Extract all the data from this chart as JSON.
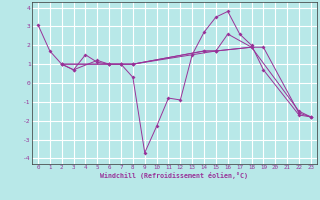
{
  "xlabel": "Windchill (Refroidissement éolien,°C)",
  "bg_color": "#b8e8e8",
  "plot_bg_color": "#b8e8e8",
  "line_color": "#993399",
  "grid_color": "#ffffff",
  "xlim": [
    -0.5,
    23.5
  ],
  "ylim": [
    -4.3,
    4.3
  ],
  "yticks": [
    -4,
    -3,
    -2,
    -1,
    0,
    1,
    2,
    3,
    4
  ],
  "xticks": [
    0,
    1,
    2,
    3,
    4,
    5,
    6,
    7,
    8,
    9,
    10,
    11,
    12,
    13,
    14,
    15,
    16,
    17,
    18,
    19,
    20,
    21,
    22,
    23
  ],
  "s1_x": [
    0,
    1,
    2,
    3,
    4,
    5,
    6,
    7,
    8,
    9,
    10,
    11,
    12,
    13,
    14,
    15,
    16,
    17,
    18,
    19,
    22,
    23
  ],
  "s1_y": [
    3.1,
    1.7,
    1.0,
    0.7,
    1.5,
    1.1,
    1.0,
    1.0,
    0.3,
    -3.7,
    -2.3,
    -0.8,
    -0.9,
    1.5,
    2.7,
    3.5,
    3.8,
    2.6,
    2.0,
    0.7,
    -1.7,
    -1.8
  ],
  "s2_x": [
    2,
    3,
    5,
    6,
    7,
    8,
    15,
    16,
    18
  ],
  "s2_y": [
    1.0,
    0.7,
    1.2,
    1.0,
    1.0,
    1.0,
    1.7,
    2.6,
    1.9
  ],
  "s3_x": [
    2,
    6,
    7,
    8,
    14,
    15,
    18,
    19,
    22,
    23
  ],
  "s3_y": [
    1.0,
    1.0,
    1.0,
    1.0,
    1.7,
    1.7,
    1.9,
    1.9,
    -1.6,
    -1.8
  ],
  "s4_x": [
    2,
    6,
    7,
    8,
    14,
    15,
    18,
    22,
    23
  ],
  "s4_y": [
    1.0,
    1.0,
    1.0,
    1.0,
    1.7,
    1.7,
    1.9,
    -1.5,
    -1.8
  ]
}
